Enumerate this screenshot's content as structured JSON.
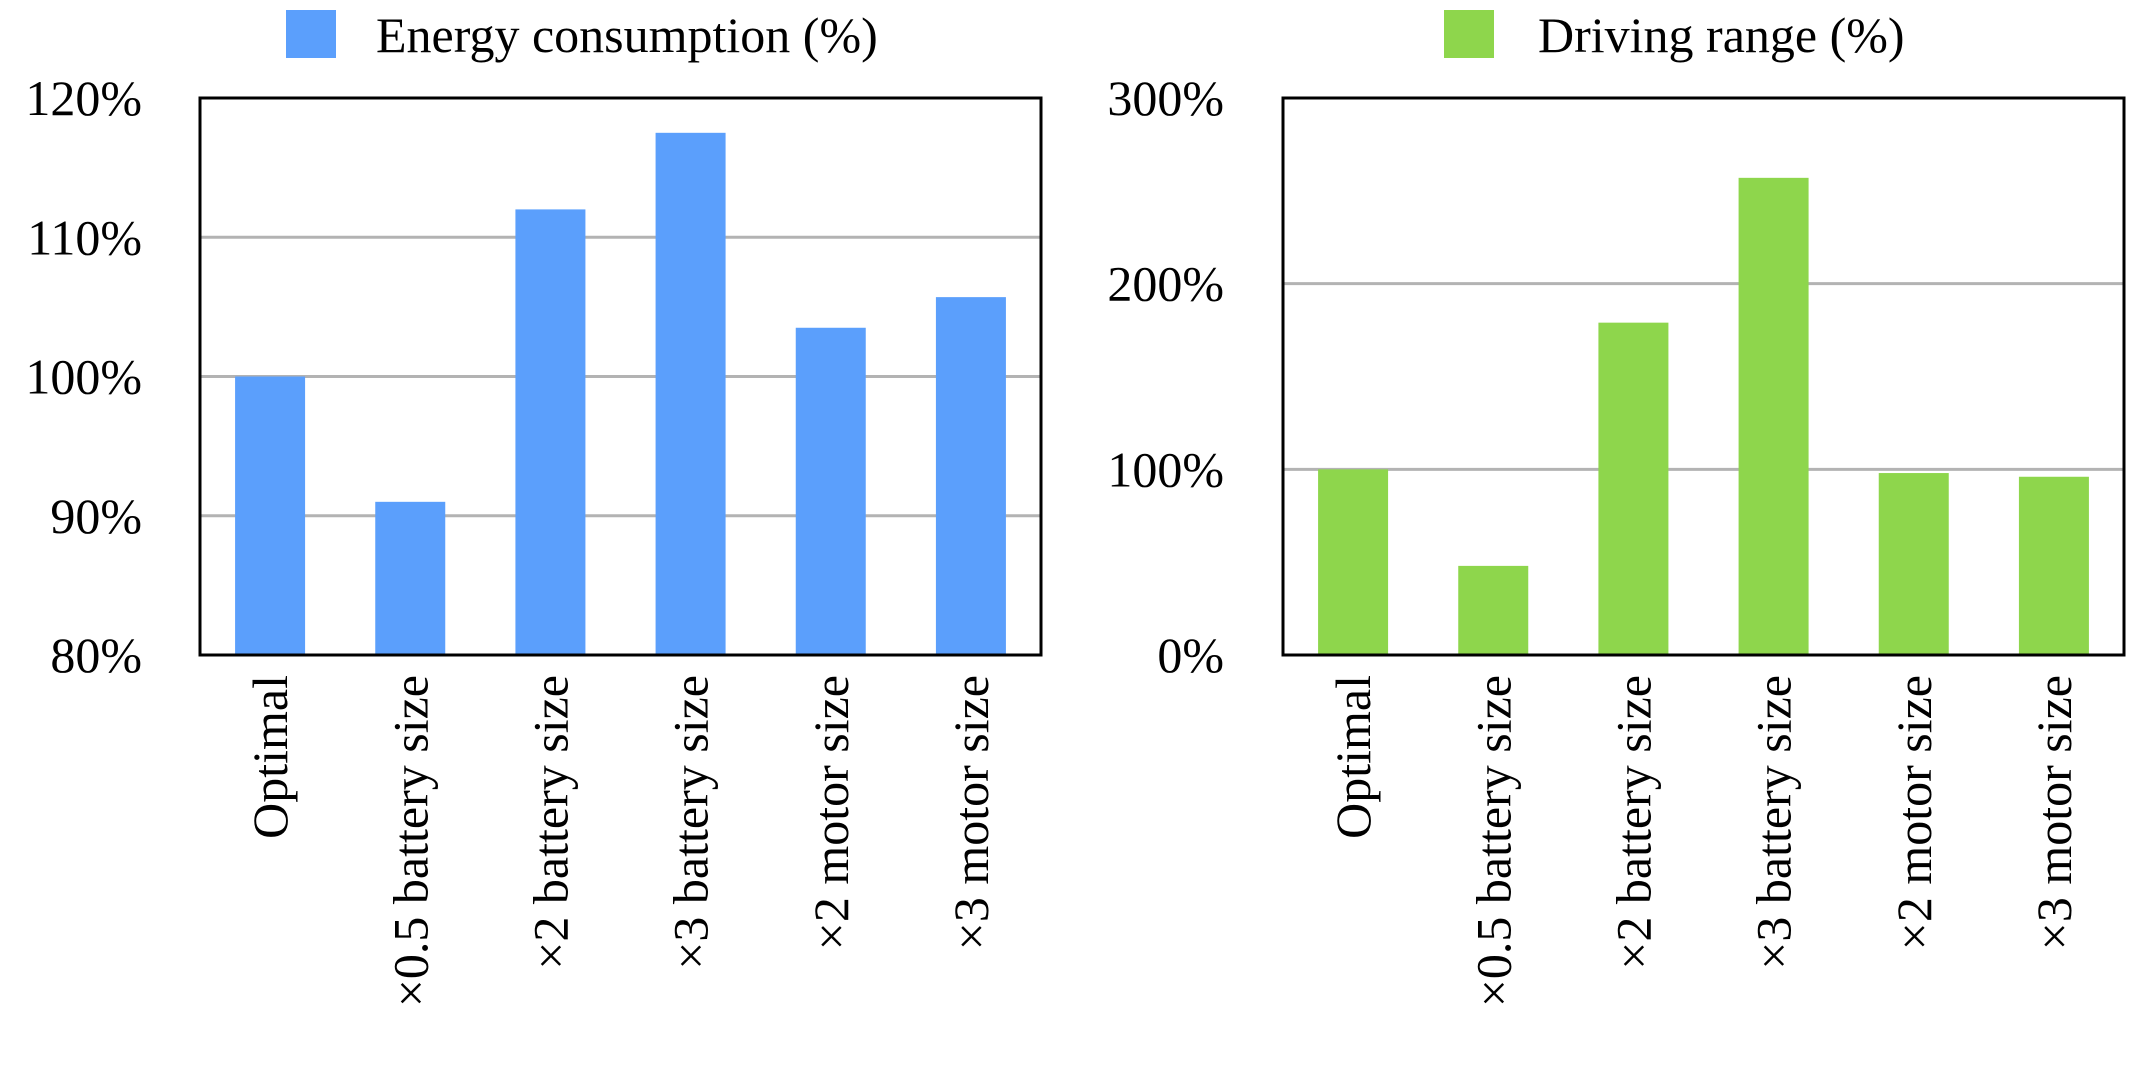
{
  "chart_data": [
    {
      "type": "bar",
      "categories": [
        "Optimal",
        "×0.5 battery size",
        "×2 battery size",
        "×3 battery size",
        "×2 motor size",
        "×3 motor size"
      ],
      "series": [
        {
          "name": "Energy consumption (%)",
          "values": [
            100,
            91,
            112,
            117.5,
            103.5,
            105.7
          ],
          "color": "#5b9ffc"
        }
      ],
      "ylim": [
        80,
        120
      ],
      "yticks": [
        80,
        90,
        100,
        110,
        120
      ],
      "ytick_labels": [
        "80%",
        "90%",
        "100%",
        "110%",
        "120%"
      ],
      "grid": true,
      "legend": "top"
    },
    {
      "type": "bar",
      "categories": [
        "Optimal",
        "×0.5 battery size",
        "×2 battery size",
        "×3 battery size",
        "×2 motor size",
        "×3 motor size"
      ],
      "series": [
        {
          "name": "Driving range (%)",
          "values": [
            100,
            48,
            179,
            257,
            98,
            96
          ],
          "color": "#8ed64c"
        }
      ],
      "ylim": [
        0,
        300
      ],
      "yticks": [
        0,
        100,
        200,
        300
      ],
      "ytick_labels": [
        "0%",
        "100%",
        "200%",
        "300%"
      ],
      "grid": true,
      "legend": "top"
    }
  ]
}
